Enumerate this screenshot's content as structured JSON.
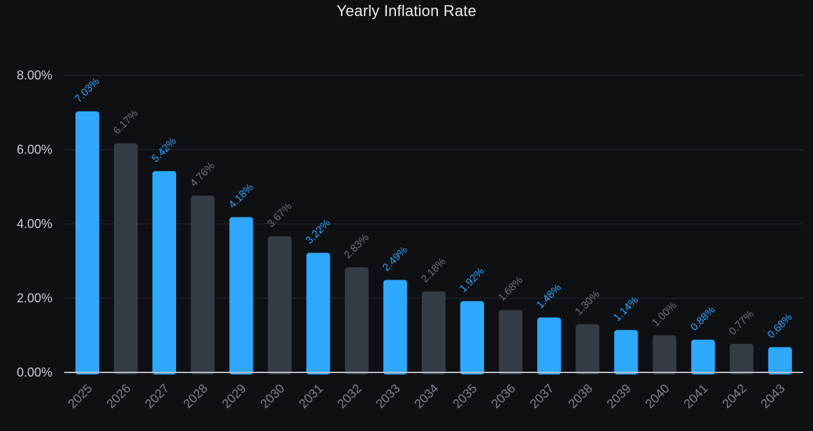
{
  "chart_data": {
    "type": "bar",
    "title": "Yearly Inflation Rate",
    "xlabel": "",
    "ylabel": "",
    "ylim": [
      0,
      8
    ],
    "y_ticks": [
      "0.00%",
      "2.00%",
      "4.00%",
      "6.00%",
      "8.00%"
    ],
    "grid": true,
    "categories": [
      "2025",
      "2026",
      "2027",
      "2028",
      "2029",
      "2030",
      "2031",
      "2032",
      "2033",
      "2034",
      "2035",
      "2036",
      "2037",
      "2038",
      "2039",
      "2040",
      "2041",
      "2042",
      "2043"
    ],
    "values": [
      7.03,
      6.17,
      5.42,
      4.76,
      4.18,
      3.67,
      3.22,
      2.83,
      2.49,
      2.18,
      1.92,
      1.68,
      1.48,
      1.3,
      1.14,
      1.0,
      0.88,
      0.77,
      0.68
    ],
    "data_labels": [
      "7.03%",
      "6.17%",
      "5.42%",
      "4.76%",
      "4.18%",
      "3.67%",
      "3.22%",
      "2.83%",
      "2.49%",
      "2.18%",
      "1.92%",
      "1.68%",
      "1.48%",
      "1.30%",
      "1.14%",
      "1.00%",
      "0.88%",
      "0.77%",
      "0.68%"
    ]
  },
  "colors": {
    "bar_primary": "#2ea8ff",
    "bar_secondary": "#353c43",
    "label_primary": "#2ea8ff",
    "label_secondary": "#6b737c",
    "grid": "#22262c",
    "axis": "#b9bec4"
  }
}
